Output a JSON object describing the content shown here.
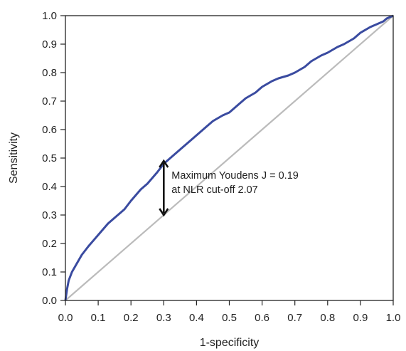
{
  "chart_data": {
    "type": "line",
    "xlabel": "1-specificity",
    "ylabel": "Sensitivity",
    "xlim": [
      0,
      1
    ],
    "ylim": [
      0,
      1
    ],
    "xticks": [
      "0.0",
      "0.1",
      "0.2",
      "0.3",
      "0.4",
      "0.5",
      "0.6",
      "0.7",
      "0.8",
      "0.9",
      "1.0"
    ],
    "yticks": [
      "0.0",
      "0.1",
      "0.2",
      "0.3",
      "0.4",
      "0.5",
      "0.6",
      "0.7",
      "0.8",
      "0.9",
      "1.0"
    ],
    "grid": false,
    "series": [
      {
        "role": "roc-curve",
        "color": "#3a4ba0",
        "x": [
          0.0,
          0.005,
          0.01,
          0.02,
          0.03,
          0.04,
          0.05,
          0.07,
          0.1,
          0.13,
          0.15,
          0.18,
          0.2,
          0.23,
          0.25,
          0.28,
          0.3,
          0.33,
          0.35,
          0.38,
          0.4,
          0.43,
          0.45,
          0.48,
          0.5,
          0.53,
          0.55,
          0.58,
          0.6,
          0.63,
          0.65,
          0.68,
          0.7,
          0.73,
          0.75,
          0.78,
          0.8,
          0.83,
          0.85,
          0.88,
          0.9,
          0.93,
          0.95,
          0.97,
          0.98,
          1.0
        ],
        "y": [
          0.0,
          0.04,
          0.07,
          0.1,
          0.12,
          0.14,
          0.16,
          0.19,
          0.23,
          0.27,
          0.29,
          0.32,
          0.35,
          0.39,
          0.41,
          0.45,
          0.48,
          0.51,
          0.53,
          0.56,
          0.58,
          0.61,
          0.63,
          0.65,
          0.66,
          0.69,
          0.71,
          0.73,
          0.75,
          0.77,
          0.78,
          0.79,
          0.8,
          0.82,
          0.84,
          0.86,
          0.87,
          0.89,
          0.9,
          0.92,
          0.94,
          0.96,
          0.97,
          0.98,
          0.99,
          1.0
        ]
      },
      {
        "role": "chance-line",
        "color": "#bbbbbb",
        "x": [
          0,
          1
        ],
        "y": [
          0,
          1
        ]
      }
    ],
    "annotation": {
      "line1": "Maximum Youdens J = 0.19",
      "line2": "at NLR cut-off 2.07",
      "arrow_x": 0.3,
      "arrow_y_from": 0.3,
      "arrow_y_to": 0.49
    }
  }
}
